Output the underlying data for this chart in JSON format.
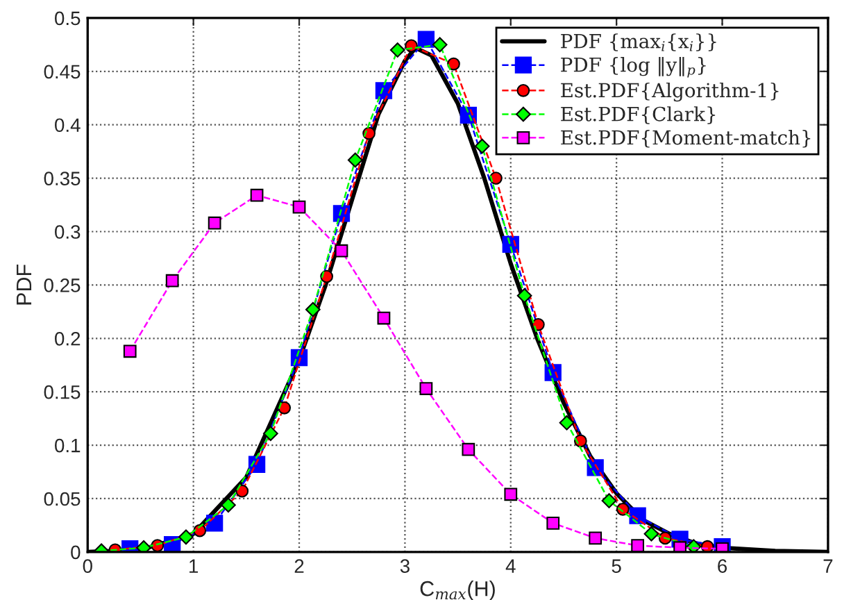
{
  "chart_data": {
    "type": "line",
    "xlabel": "C$_{max}$(H)",
    "ylabel": "PDF",
    "xlim": [
      0,
      7
    ],
    "ylim": [
      0,
      0.5
    ],
    "xticks": [
      0,
      1,
      2,
      3,
      4,
      5,
      6,
      7
    ],
    "yticks": [
      0,
      0.05,
      0.1,
      0.15,
      0.2,
      0.25,
      0.3,
      0.35,
      0.4,
      0.45,
      0.5
    ],
    "grid": true,
    "legend": "top right",
    "series": [
      {
        "name": "PDF {max$_{i}${x$_{i}$}}",
        "color": "#000000",
        "marker": "none",
        "line_style": "solid",
        "x": [
          0,
          0.5,
          1.0,
          1.5,
          2.0,
          2.25,
          2.5,
          2.75,
          3.0,
          3.1,
          3.25,
          3.5,
          3.75,
          4.0,
          4.25,
          4.5,
          4.75,
          5.0,
          5.25,
          5.5,
          5.75,
          6.0,
          6.5,
          7.0
        ],
        "values": [
          0,
          0.002,
          0.017,
          0.07,
          0.18,
          0.25,
          0.33,
          0.41,
          0.46,
          0.472,
          0.465,
          0.42,
          0.35,
          0.27,
          0.2,
          0.14,
          0.09,
          0.055,
          0.03,
          0.017,
          0.008,
          0.004,
          0.001,
          0
        ]
      },
      {
        "name": "PDF {log ‖y‖$_{p}$}",
        "color": "#0000ff",
        "marker": "square",
        "line_style": "dashed",
        "x": [
          0.4,
          0.8,
          1.2,
          1.6,
          2.0,
          2.4,
          2.8,
          3.2,
          3.6,
          4.0,
          4.4,
          4.8,
          5.2,
          5.6,
          6.0
        ],
        "values": [
          0.003,
          0.007,
          0.027,
          0.082,
          0.182,
          0.317,
          0.432,
          0.48,
          0.409,
          0.288,
          0.168,
          0.079,
          0.034,
          0.012,
          0.005
        ]
      },
      {
        "name": "Est.PDF{Algorithm-1}",
        "color": "#ff0000",
        "marker": "circle",
        "line_style": "dashed",
        "x": [
          0.26,
          0.66,
          1.06,
          1.46,
          1.86,
          2.26,
          2.66,
          3.06,
          3.46,
          3.86,
          4.26,
          4.66,
          5.06,
          5.46,
          5.86
        ],
        "values": [
          0.002,
          0.006,
          0.02,
          0.057,
          0.135,
          0.258,
          0.392,
          0.474,
          0.457,
          0.35,
          0.213,
          0.104,
          0.04,
          0.013,
          0.005
        ]
      },
      {
        "name": "Est.PDF{Clark}",
        "color": "#00ff00",
        "marker": "diamond",
        "line_style": "dashed",
        "x": [
          0.13,
          0.53,
          0.93,
          1.33,
          1.73,
          2.13,
          2.53,
          2.93,
          3.33,
          3.73,
          4.13,
          4.53,
          4.93,
          5.33,
          5.73
        ],
        "values": [
          0.001,
          0.004,
          0.014,
          0.044,
          0.111,
          0.227,
          0.367,
          0.47,
          0.475,
          0.38,
          0.24,
          0.121,
          0.048,
          0.017,
          0.005
        ]
      },
      {
        "name": "Est.PDF{Moment-match}",
        "color": "#ff00ff",
        "marker": "square",
        "line_style": "dashed",
        "x": [
          0.4,
          0.8,
          1.2,
          1.6,
          2.0,
          2.4,
          2.8,
          3.2,
          3.6,
          4.0,
          4.4,
          4.8,
          5.2,
          5.6,
          6.0
        ],
        "values": [
          0.188,
          0.254,
          0.308,
          0.334,
          0.323,
          0.282,
          0.219,
          0.153,
          0.096,
          0.054,
          0.027,
          0.013,
          0.006,
          0.004,
          0.003
        ]
      }
    ]
  }
}
